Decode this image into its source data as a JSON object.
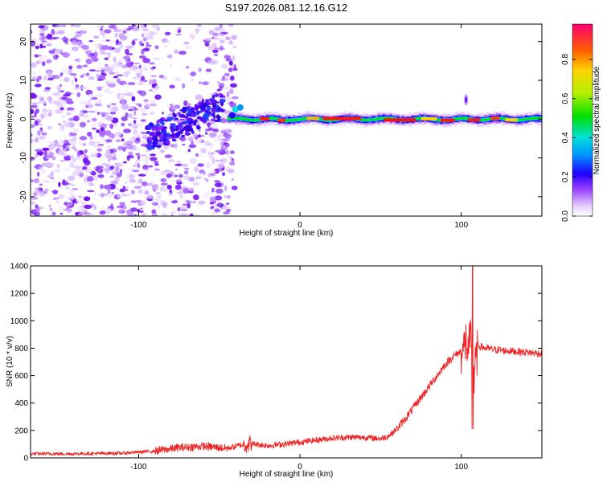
{
  "title": "S197.2026.081.12.16.G12",
  "chart_data": [
    {
      "type": "heatmap",
      "xlabel": "Height of straight line (km)",
      "ylabel": "Frequency (Hz)",
      "xlim": [
        -167,
        150
      ],
      "ylim": [
        -25,
        24.5
      ],
      "xticks": [
        -100,
        0,
        100
      ],
      "yticks": [
        -20,
        -10,
        0,
        10,
        20
      ],
      "colorbar": {
        "label": "Normalized spectral amplitude",
        "range": [
          0.0,
          0.98
        ],
        "ticks": [
          0.0,
          0.2,
          0.4,
          0.6,
          0.8
        ]
      },
      "features": {
        "noise_region_km": [
          -167,
          -45
        ],
        "diffuse_band_km": [
          -95,
          -55
        ],
        "signal_line_km": [
          -45,
          150
        ],
        "signal_frequency_hz": 0,
        "peak_amplitude": 0.95,
        "anomaly_km": 103
      }
    },
    {
      "type": "line",
      "xlabel": "Height of straight line (km)",
      "ylabel": "SNR (10 * v/v)",
      "xlim": [
        -167,
        150
      ],
      "ylim": [
        0,
        1400
      ],
      "xticks": [
        -100,
        0,
        100
      ],
      "yticks": [
        0,
        200,
        400,
        600,
        800,
        1000,
        1200,
        1400
      ],
      "color": "#ee2222",
      "series": [
        {
          "name": "SNR",
          "x": [
            -167,
            -140,
            -110,
            -90,
            -75,
            -60,
            -45,
            -32,
            -20,
            -10,
            0,
            10,
            20,
            30,
            40,
            50,
            55,
            60,
            65,
            70,
            75,
            80,
            85,
            90,
            95,
            100,
            103,
            106,
            108,
            110,
            115,
            120,
            130,
            140,
            150
          ],
          "values": [
            30,
            30,
            35,
            50,
            75,
            85,
            70,
            105,
            90,
            100,
            115,
            130,
            145,
            150,
            150,
            140,
            160,
            210,
            280,
            360,
            440,
            520,
            600,
            680,
            740,
            780,
            800,
            810,
            600,
            820,
            800,
            790,
            780,
            770,
            760
          ]
        }
      ]
    }
  ]
}
